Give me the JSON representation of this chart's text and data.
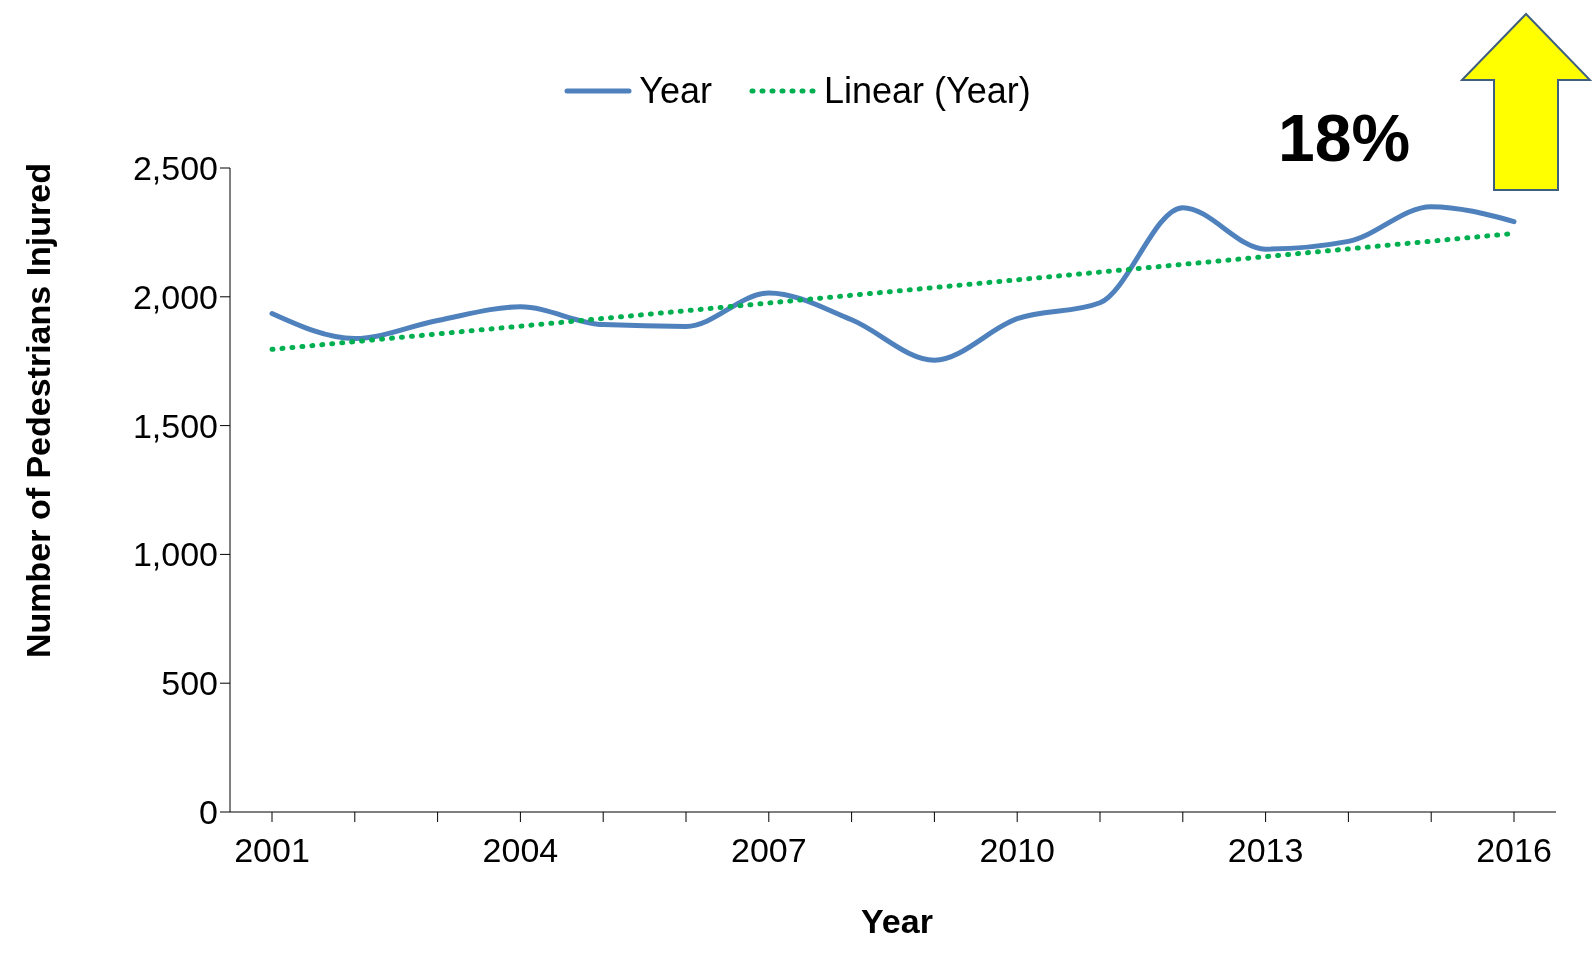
{
  "chart_data": {
    "type": "line",
    "xlabel": "Year",
    "ylabel": "Number of Pedestrians Injured",
    "categories": [
      "2001",
      null,
      null,
      "2004",
      null,
      null,
      "2007",
      null,
      null,
      "2010",
      null,
      null,
      "2013",
      null,
      null,
      "2016"
    ],
    "series": [
      {
        "name": "Year",
        "color": "#4f81bd",
        "line_style": "solid",
        "values": [
          1935,
          1838,
          1908,
          1961,
          1892,
          1885,
          2015,
          1911,
          1754,
          1915,
          1977,
          2346,
          2185,
          2215,
          2350,
          2292
        ]
      },
      {
        "name": "Linear (Year)",
        "type": "line",
        "color": "#00b050",
        "line_style": "dotted",
        "values": [
          1796,
          null,
          null,
          null,
          null,
          null,
          null,
          null,
          null,
          null,
          null,
          null,
          null,
          null,
          null,
          2246
        ]
      }
    ],
    "ylim": [
      0,
      2500
    ],
    "yticks": [
      0,
      500,
      {
        "value": 1000,
        "label": "1,000"
      },
      {
        "value": 1500,
        "label": "1,500"
      },
      {
        "value": 2000,
        "label": "2,000"
      },
      {
        "value": 2500,
        "label": "2,500"
      }
    ],
    "grid": false,
    "marker": "none",
    "legend": "top",
    "annotations": [
      "18%"
    ]
  }
}
